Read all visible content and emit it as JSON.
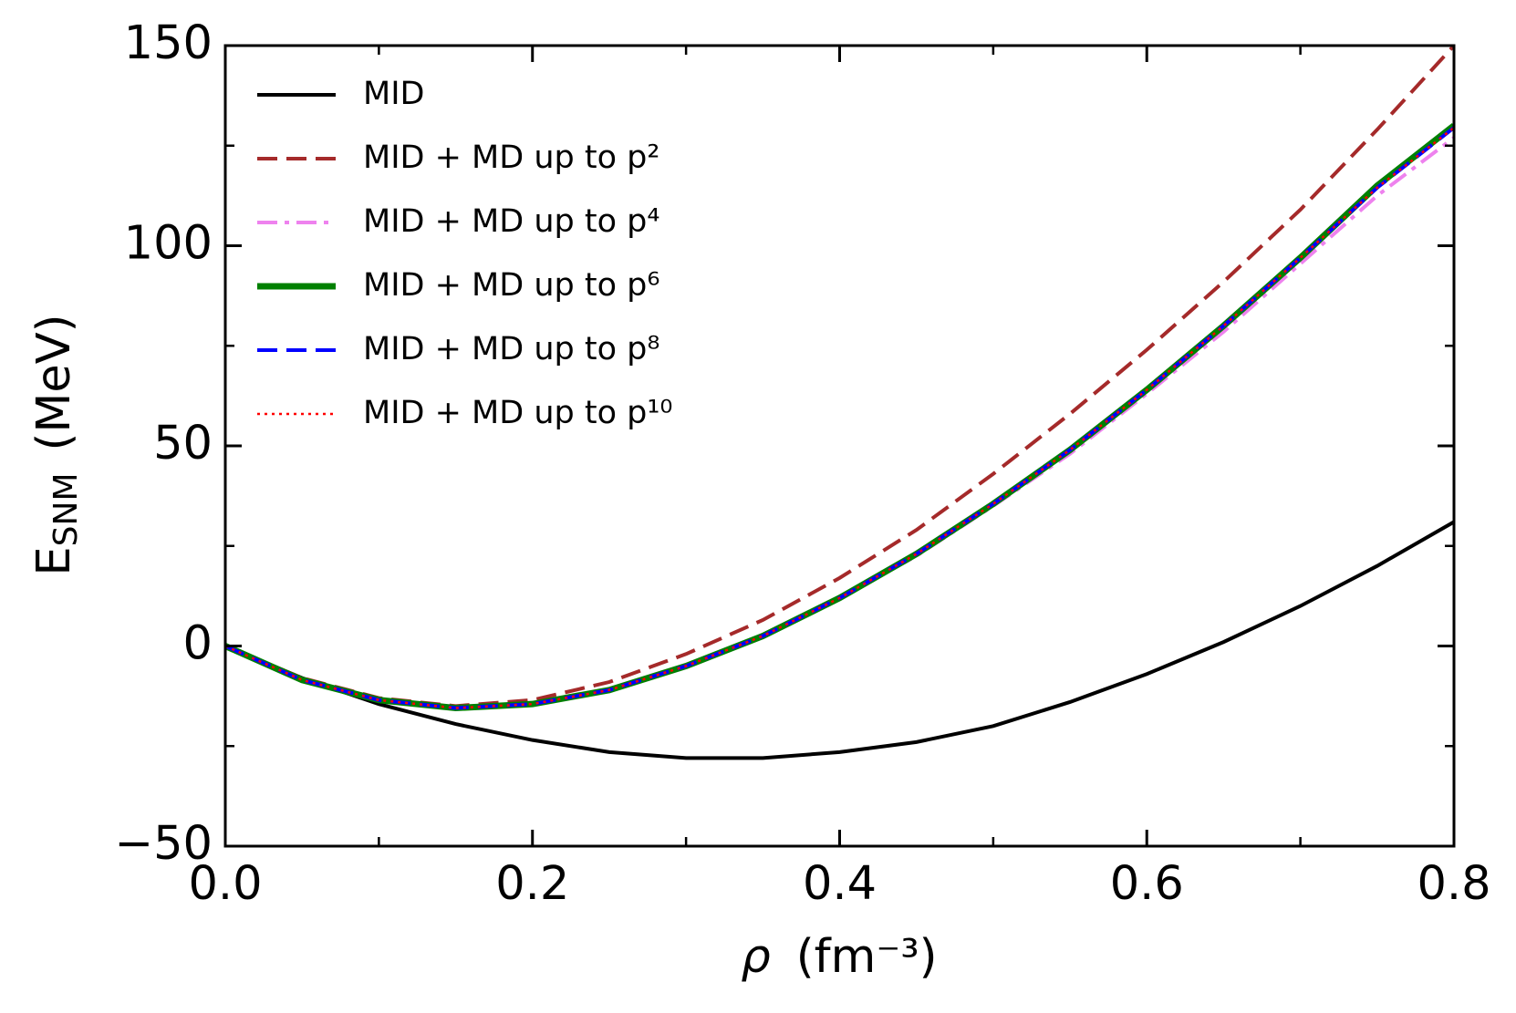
{
  "chart_data": {
    "type": "line",
    "xlabel": [
      "ρ",
      "(fm⁻³)"
    ],
    "ylabel": [
      "E",
      "SNM",
      "(MeV)"
    ],
    "x": [
      0,
      0.05,
      0.1,
      0.15,
      0.2,
      0.25,
      0.3,
      0.35,
      0.4,
      0.45,
      0.5,
      0.55,
      0.6,
      0.65,
      0.7,
      0.75,
      0.8
    ],
    "series": [
      {
        "name": "MID",
        "color": "#000000",
        "dash": "solid",
        "width": 4,
        "values": [
          0,
          -8,
          -14.5,
          -19.5,
          -23.5,
          -26.5,
          -28,
          -28,
          -26.5,
          -24,
          -20,
          -14,
          -7,
          1,
          10,
          20,
          31
        ]
      },
      {
        "name": "MID + MD up to p²",
        "color": "#a52a2a",
        "dash": "dashed",
        "width": 4,
        "values": [
          0,
          -8,
          -13,
          -15,
          -13.5,
          -9,
          -2,
          6.5,
          17,
          29,
          43,
          58,
          74,
          91,
          109,
          129,
          150
        ]
      },
      {
        "name": "MID + MD up to p⁴",
        "color": "#ee82ee",
        "dash": "dashdot",
        "width": 4,
        "values": [
          0,
          -8.5,
          -13.5,
          -15.5,
          -14.5,
          -11,
          -5,
          2.5,
          12,
          22.5,
          35,
          48,
          63,
          78.5,
          95.5,
          112.5,
          127
        ]
      },
      {
        "name": "MID + MD up to p⁶",
        "color": "#008000",
        "dash": "solid",
        "width": 7,
        "values": [
          0,
          -8.5,
          -13.5,
          -15.5,
          -14.5,
          -11,
          -5,
          2.5,
          12,
          23,
          35.5,
          49,
          64,
          80,
          97,
          115,
          130
        ]
      },
      {
        "name": "MID + MD up to p⁸",
        "color": "#0000ff",
        "dash": "dashed",
        "width": 4,
        "values": [
          0,
          -8.5,
          -13.5,
          -15.5,
          -14.5,
          -11,
          -5,
          2.5,
          12,
          23,
          35.5,
          49,
          64,
          80,
          97,
          114.5,
          129.5
        ]
      },
      {
        "name": "MID + MD up to p¹⁰",
        "color": "#ff0000",
        "dash": "dotted",
        "width": 2.5,
        "values": [
          0,
          -8.5,
          -13.5,
          -15.5,
          -14.5,
          -11,
          -5,
          2.5,
          12,
          23,
          35.5,
          49,
          64,
          80,
          97,
          114.5,
          129.5
        ]
      }
    ],
    "xlim": [
      0,
      0.8
    ],
    "xticks": [
      {
        "value": 0,
        "label": "0.0"
      },
      0.2,
      0.4,
      0.6,
      0.8
    ],
    "xminor": [
      0.1,
      0.3,
      0.5,
      0.7
    ],
    "ylim": [
      -50,
      150
    ],
    "yticks": [
      {
        "value": -50,
        "label": "−50"
      },
      0,
      50,
      100,
      150
    ],
    "yminor": [
      -25,
      25,
      75,
      125
    ],
    "legend": "upper left",
    "grid": false
  }
}
